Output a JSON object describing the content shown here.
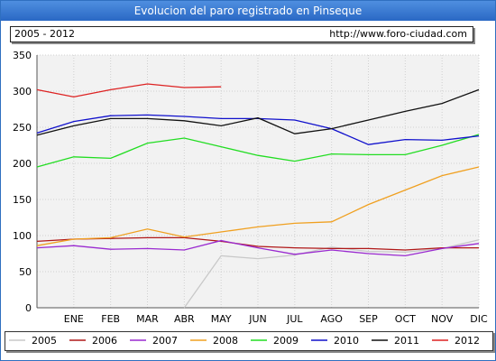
{
  "header": {
    "title": "Evolucion del paro registrado en Pinseque",
    "period": "2005 - 2012",
    "url": "http://www.foro-ciudad.com"
  },
  "chart_data": {
    "type": "line",
    "categories": [
      "",
      "ENE",
      "FEB",
      "MAR",
      "ABR",
      "MAY",
      "JUN",
      "JUL",
      "AGO",
      "SEP",
      "OCT",
      "NOV",
      "DIC"
    ],
    "ylim": [
      0,
      350
    ],
    "yticks": [
      0,
      50,
      100,
      150,
      200,
      250,
      300,
      350
    ],
    "grid": true,
    "legend": "bottom",
    "series": [
      {
        "name": "2005",
        "color": "#c8c8c8",
        "values": [
          null,
          null,
          null,
          null,
          0,
          72,
          68,
          73,
          84,
          78,
          77,
          82,
          94
        ]
      },
      {
        "name": "2006",
        "color": "#b01818",
        "values": [
          92,
          95,
          96,
          97,
          97,
          92,
          85,
          83,
          82,
          82,
          80,
          83,
          83
        ]
      },
      {
        "name": "2007",
        "color": "#9a2ad0",
        "values": [
          83,
          86,
          81,
          82,
          80,
          93,
          83,
          74,
          80,
          75,
          72,
          82,
          89
        ]
      },
      {
        "name": "2008",
        "color": "#f0a020",
        "values": [
          86,
          95,
          97,
          109,
          98,
          105,
          112,
          117,
          119,
          143,
          163,
          183,
          195
        ]
      },
      {
        "name": "2009",
        "color": "#22dd22",
        "values": [
          195,
          209,
          207,
          228,
          235,
          223,
          211,
          203,
          213,
          212,
          212,
          225,
          240
        ]
      },
      {
        "name": "2010",
        "color": "#1010cc",
        "values": [
          242,
          258,
          266,
          267,
          265,
          262,
          262,
          260,
          248,
          226,
          233,
          232,
          238
        ]
      },
      {
        "name": "2011",
        "color": "#111111",
        "values": [
          239,
          252,
          262,
          262,
          259,
          252,
          263,
          241,
          248,
          260,
          272,
          283,
          302
        ]
      },
      {
        "name": "2012",
        "color": "#dd2222",
        "values": [
          302,
          292,
          302,
          310,
          305,
          306,
          null,
          null,
          null,
          null,
          null,
          null,
          null
        ]
      }
    ]
  }
}
